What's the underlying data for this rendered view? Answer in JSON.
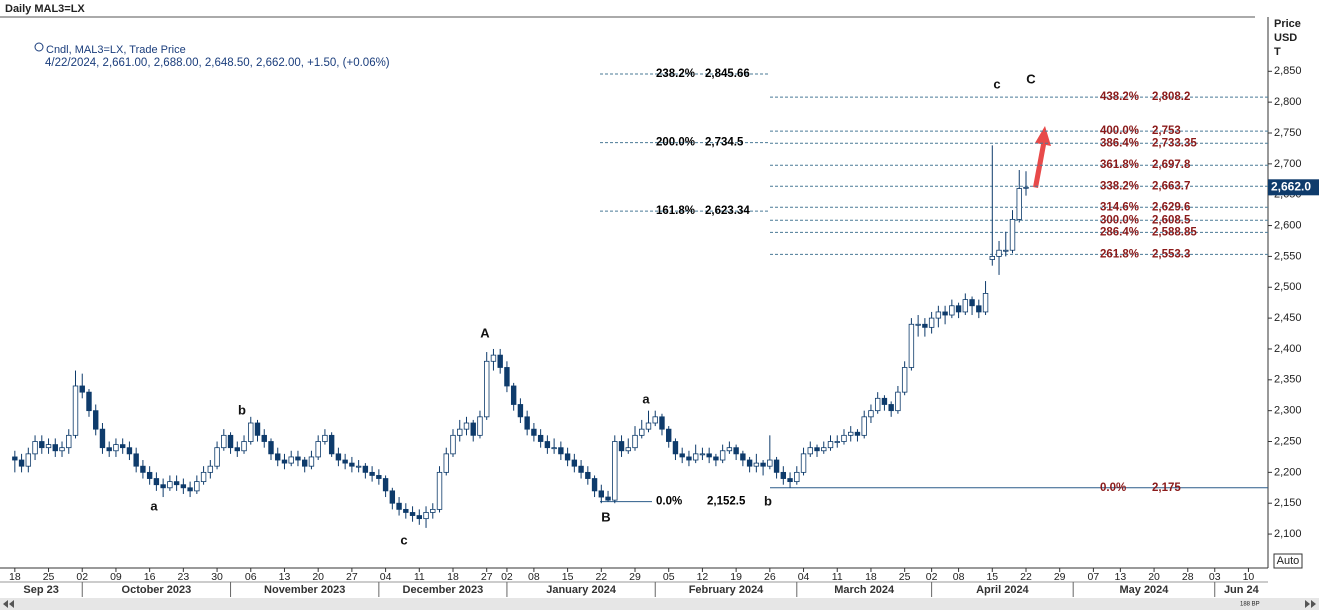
{
  "chart_data": {
    "type": "candlestick",
    "title": "Daily MAL3=LX",
    "legend": [
      "Cndl, MAL3=LX, Trade Price",
      "4/22/2024, 2,661.00, 2,688.00, 2,648.50, 2,662.00, +1.50, (+0.06%)"
    ],
    "y_axis_title": [
      "Price",
      "USD",
      "T"
    ],
    "ylim": [
      2045,
      2938
    ],
    "yticks": [
      {
        "value": 2100,
        "label": "2,100"
      },
      {
        "value": 2150,
        "label": "2,150"
      },
      {
        "value": 2200,
        "label": "2,200"
      },
      {
        "value": 2250,
        "label": "2,250"
      },
      {
        "value": 2300,
        "label": "2,300"
      },
      {
        "value": 2350,
        "label": "2,350"
      },
      {
        "value": 2400,
        "label": "2,400"
      },
      {
        "value": 2450,
        "label": "2,450"
      },
      {
        "value": 2500,
        "label": "2,500"
      },
      {
        "value": 2550,
        "label": "2,550"
      },
      {
        "value": 2600,
        "label": "2,600"
      },
      {
        "value": 2650,
        "label": "2,650"
      },
      {
        "value": 2700,
        "label": "2,700"
      },
      {
        "value": 2750,
        "label": "2,750"
      },
      {
        "value": 2800,
        "label": "2,800"
      },
      {
        "value": 2850,
        "label": "2,850"
      }
    ],
    "xlim": [
      -2.2,
      185.9
    ],
    "xticks": [
      {
        "value": 0,
        "label": "18"
      },
      {
        "value": 5,
        "label": "25"
      },
      {
        "value": 10,
        "label": "02"
      },
      {
        "value": 15,
        "label": "09"
      },
      {
        "value": 20,
        "label": "16"
      },
      {
        "value": 25,
        "label": "23"
      },
      {
        "value": 30,
        "label": "30"
      },
      {
        "value": 35,
        "label": "06"
      },
      {
        "value": 40,
        "label": "13"
      },
      {
        "value": 45,
        "label": "20"
      },
      {
        "value": 50,
        "label": "27"
      },
      {
        "value": 55,
        "label": "04"
      },
      {
        "value": 60,
        "label": "11"
      },
      {
        "value": 65,
        "label": "18"
      },
      {
        "value": 70,
        "label": "27"
      },
      {
        "value": 73,
        "label": "02"
      },
      {
        "value": 77,
        "label": "08"
      },
      {
        "value": 82,
        "label": "15"
      },
      {
        "value": 87,
        "label": "22"
      },
      {
        "value": 92,
        "label": "29"
      },
      {
        "value": 97,
        "label": "05"
      },
      {
        "value": 102,
        "label": "12"
      },
      {
        "value": 107,
        "label": "19"
      },
      {
        "value": 112,
        "label": "26"
      },
      {
        "value": 117,
        "label": "04"
      },
      {
        "value": 122,
        "label": "11"
      },
      {
        "value": 127,
        "label": "18"
      },
      {
        "value": 132,
        "label": "25"
      },
      {
        "value": 136,
        "label": "02"
      },
      {
        "value": 140,
        "label": "08"
      },
      {
        "value": 145,
        "label": "15"
      },
      {
        "value": 150,
        "label": "22"
      },
      {
        "value": 155,
        "label": "29"
      },
      {
        "value": 160,
        "label": "07"
      },
      {
        "value": 164,
        "label": "13"
      },
      {
        "value": 169,
        "label": "20"
      },
      {
        "value": 174,
        "label": "28"
      },
      {
        "value": 178,
        "label": "03"
      },
      {
        "value": 183,
        "label": "10"
      }
    ],
    "months": [
      "Sep 23",
      "October 2023",
      "November 2023",
      "December 2023",
      "January 2024",
      "February 2024",
      "March 2024",
      "April 2024",
      "May 2024",
      "Jun 24"
    ],
    "candles": [
      [
        2225,
        2235,
        2200,
        2220
      ],
      [
        2220,
        2230,
        2200,
        2210
      ],
      [
        2210,
        2240,
        2200,
        2230
      ],
      [
        2230,
        2260,
        2220,
        2250
      ],
      [
        2250,
        2260,
        2230,
        2240
      ],
      [
        2240,
        2255,
        2230,
        2245
      ],
      [
        2245,
        2255,
        2225,
        2235
      ],
      [
        2235,
        2250,
        2225,
        2240
      ],
      [
        2240,
        2270,
        2230,
        2260
      ],
      [
        2260,
        2365,
        2255,
        2340
      ],
      [
        2340,
        2360,
        2320,
        2330
      ],
      [
        2330,
        2335,
        2290,
        2300
      ],
      [
        2300,
        2310,
        2260,
        2270
      ],
      [
        2270,
        2280,
        2230,
        2240
      ],
      [
        2240,
        2250,
        2225,
        2235
      ],
      [
        2235,
        2255,
        2225,
        2245
      ],
      [
        2245,
        2255,
        2230,
        2240
      ],
      [
        2240,
        2250,
        2220,
        2230
      ],
      [
        2230,
        2240,
        2200,
        2210
      ],
      [
        2210,
        2220,
        2190,
        2200
      ],
      [
        2200,
        2210,
        2180,
        2190
      ],
      [
        2190,
        2200,
        2170,
        2180
      ],
      [
        2180,
        2190,
        2160,
        2175
      ],
      [
        2175,
        2195,
        2170,
        2185
      ],
      [
        2185,
        2195,
        2170,
        2180
      ],
      [
        2180,
        2190,
        2165,
        2175
      ],
      [
        2175,
        2185,
        2160,
        2170
      ],
      [
        2170,
        2195,
        2165,
        2185
      ],
      [
        2185,
        2210,
        2180,
        2200
      ],
      [
        2200,
        2220,
        2190,
        2210
      ],
      [
        2210,
        2250,
        2205,
        2240
      ],
      [
        2240,
        2270,
        2235,
        2260
      ],
      [
        2260,
        2265,
        2230,
        2240
      ],
      [
        2240,
        2250,
        2225,
        2235
      ],
      [
        2235,
        2260,
        2230,
        2250
      ],
      [
        2250,
        2290,
        2245,
        2280
      ],
      [
        2280,
        2285,
        2250,
        2260
      ],
      [
        2260,
        2270,
        2240,
        2250
      ],
      [
        2250,
        2255,
        2220,
        2230
      ],
      [
        2230,
        2240,
        2210,
        2220
      ],
      [
        2220,
        2230,
        2205,
        2215
      ],
      [
        2215,
        2235,
        2210,
        2225
      ],
      [
        2225,
        2235,
        2210,
        2220
      ],
      [
        2220,
        2225,
        2200,
        2210
      ],
      [
        2210,
        2235,
        2205,
        2225
      ],
      [
        2225,
        2260,
        2220,
        2250
      ],
      [
        2250,
        2270,
        2245,
        2260
      ],
      [
        2260,
        2265,
        2225,
        2230
      ],
      [
        2230,
        2240,
        2210,
        2220
      ],
      [
        2220,
        2230,
        2205,
        2215
      ],
      [
        2215,
        2225,
        2200,
        2210
      ],
      [
        2210,
        2220,
        2200,
        2210
      ],
      [
        2210,
        2215,
        2190,
        2200
      ],
      [
        2200,
        2210,
        2185,
        2195
      ],
      [
        2195,
        2205,
        2180,
        2190
      ],
      [
        2190,
        2195,
        2160,
        2170
      ],
      [
        2170,
        2175,
        2140,
        2150
      ],
      [
        2150,
        2160,
        2130,
        2140
      ],
      [
        2140,
        2150,
        2125,
        2135
      ],
      [
        2135,
        2145,
        2120,
        2130
      ],
      [
        2130,
        2140,
        2115,
        2125
      ],
      [
        2125,
        2145,
        2110,
        2135
      ],
      [
        2135,
        2150,
        2125,
        2140
      ],
      [
        2140,
        2210,
        2135,
        2200
      ],
      [
        2200,
        2240,
        2195,
        2230
      ],
      [
        2230,
        2270,
        2225,
        2260
      ],
      [
        2260,
        2285,
        2250,
        2270
      ],
      [
        2270,
        2290,
        2260,
        2280
      ],
      [
        2280,
        2285,
        2250,
        2260
      ],
      [
        2260,
        2300,
        2255,
        2290
      ],
      [
        2290,
        2395,
        2285,
        2380
      ],
      [
        2380,
        2400,
        2365,
        2390
      ],
      [
        2390,
        2400,
        2360,
        2370
      ],
      [
        2370,
        2380,
        2330,
        2340
      ],
      [
        2340,
        2345,
        2300,
        2310
      ],
      [
        2310,
        2320,
        2280,
        2290
      ],
      [
        2290,
        2300,
        2260,
        2270
      ],
      [
        2270,
        2280,
        2250,
        2260
      ],
      [
        2260,
        2270,
        2240,
        2250
      ],
      [
        2250,
        2260,
        2230,
        2240
      ],
      [
        2240,
        2255,
        2230,
        2240
      ],
      [
        2240,
        2250,
        2220,
        2230
      ],
      [
        2230,
        2240,
        2210,
        2220
      ],
      [
        2220,
        2230,
        2200,
        2210
      ],
      [
        2210,
        2220,
        2190,
        2200
      ],
      [
        2200,
        2210,
        2180,
        2190
      ],
      [
        2190,
        2195,
        2160,
        2170
      ],
      [
        2170,
        2180,
        2150,
        2160
      ],
      [
        2160,
        2170,
        2152.5,
        2155
      ],
      [
        2155,
        2260,
        2150,
        2250
      ],
      [
        2250,
        2260,
        2225,
        2235
      ],
      [
        2235,
        2255,
        2230,
        2240
      ],
      [
        2240,
        2275,
        2235,
        2260
      ],
      [
        2260,
        2285,
        2255,
        2270
      ],
      [
        2270,
        2300,
        2265,
        2280
      ],
      [
        2280,
        2300,
        2275,
        2290
      ],
      [
        2290,
        2295,
        2260,
        2270
      ],
      [
        2270,
        2275,
        2240,
        2250
      ],
      [
        2250,
        2255,
        2220,
        2230
      ],
      [
        2230,
        2240,
        2215,
        2225
      ],
      [
        2225,
        2235,
        2210,
        2220
      ],
      [
        2220,
        2245,
        2215,
        2230
      ],
      [
        2230,
        2240,
        2220,
        2230
      ],
      [
        2230,
        2240,
        2215,
        2225
      ],
      [
        2225,
        2230,
        2210,
        2220
      ],
      [
        2220,
        2245,
        2215,
        2235
      ],
      [
        2235,
        2250,
        2230,
        2240
      ],
      [
        2240,
        2245,
        2220,
        2230
      ],
      [
        2230,
        2235,
        2210,
        2220
      ],
      [
        2220,
        2225,
        2200,
        2210
      ],
      [
        2210,
        2230,
        2200,
        2215
      ],
      [
        2215,
        2220,
        2195,
        2210
      ],
      [
        2210,
        2260,
        2205,
        2220
      ],
      [
        2220,
        2225,
        2190,
        2200
      ],
      [
        2200,
        2210,
        2180,
        2190
      ],
      [
        2190,
        2200,
        2175,
        2185
      ],
      [
        2185,
        2210,
        2180,
        2200
      ],
      [
        2200,
        2240,
        2195,
        2230
      ],
      [
        2230,
        2250,
        2225,
        2240
      ],
      [
        2240,
        2245,
        2225,
        2235
      ],
      [
        2235,
        2250,
        2230,
        2240
      ],
      [
        2240,
        2260,
        2235,
        2250
      ],
      [
        2250,
        2260,
        2240,
        2250
      ],
      [
        2250,
        2270,
        2245,
        2260
      ],
      [
        2260,
        2275,
        2250,
        2265
      ],
      [
        2265,
        2270,
        2250,
        2260
      ],
      [
        2260,
        2300,
        2255,
        2290
      ],
      [
        2290,
        2310,
        2280,
        2300
      ],
      [
        2300,
        2330,
        2295,
        2320
      ],
      [
        2320,
        2325,
        2300,
        2310
      ],
      [
        2310,
        2315,
        2290,
        2300
      ],
      [
        2300,
        2340,
        2295,
        2330
      ],
      [
        2330,
        2380,
        2325,
        2370
      ],
      [
        2370,
        2450,
        2365,
        2440
      ],
      [
        2440,
        2455,
        2420,
        2440
      ],
      [
        2440,
        2450,
        2420,
        2435
      ],
      [
        2435,
        2460,
        2425,
        2450
      ],
      [
        2450,
        2470,
        2435,
        2460
      ],
      [
        2460,
        2470,
        2440,
        2455
      ],
      [
        2455,
        2480,
        2450,
        2470
      ],
      [
        2470,
        2475,
        2450,
        2460
      ],
      [
        2460,
        2490,
        2455,
        2480
      ],
      [
        2480,
        2485,
        2455,
        2470
      ],
      [
        2470,
        2480,
        2450,
        2460
      ],
      [
        2460,
        2510,
        2455,
        2490
      ],
      [
        2545,
        2730,
        2535,
        2550
      ],
      [
        2550,
        2575,
        2520,
        2560
      ],
      [
        2560,
        2590,
        2550,
        2560
      ],
      [
        2560,
        2625,
        2555,
        2610
      ],
      [
        2610,
        2690,
        2605,
        2660
      ],
      [
        2661,
        2688,
        2648.5,
        2662
      ]
    ],
    "last_price": {
      "value": 2662,
      "label": "2,662.0"
    },
    "fib_left": [
      {
        "ratio": "238.2%",
        "value": 2845.66,
        "label": "2,845.66"
      },
      {
        "ratio": "200.0%",
        "value": 2734.5,
        "label": "2,734.5"
      },
      {
        "ratio": "161.8%",
        "value": 2623.34,
        "label": "2,623.34"
      },
      {
        "ratio": "0.0%",
        "value": 2152.5,
        "label": "2,152.5"
      }
    ],
    "fib_right": [
      {
        "ratio": "438.2%",
        "value": 2808.2,
        "label": "2,808.2"
      },
      {
        "ratio": "400.0%",
        "value": 2753,
        "label": "2,753"
      },
      {
        "ratio": "386.4%",
        "value": 2733.35,
        "label": "2,733.35"
      },
      {
        "ratio": "361.8%",
        "value": 2697.8,
        "label": "2,697.8"
      },
      {
        "ratio": "338.2%",
        "value": 2663.7,
        "label": "2,663.7"
      },
      {
        "ratio": "314.6%",
        "value": 2629.6,
        "label": "2,629.6"
      },
      {
        "ratio": "300.0%",
        "value": 2608.5,
        "label": "2,608.5"
      },
      {
        "ratio": "286.4%",
        "value": 2588.85,
        "label": "2,588.85"
      },
      {
        "ratio": "261.8%",
        "value": 2553.3,
        "label": "2,553.3"
      },
      {
        "ratio": "0.0%",
        "value": 2175,
        "label": "2,175"
      }
    ],
    "wave_labels": [
      "a",
      "b",
      "c",
      "A",
      "B",
      "a",
      "b",
      "c",
      "C"
    ],
    "auto_button": "Auto",
    "scroll_label": "188 BP"
  }
}
